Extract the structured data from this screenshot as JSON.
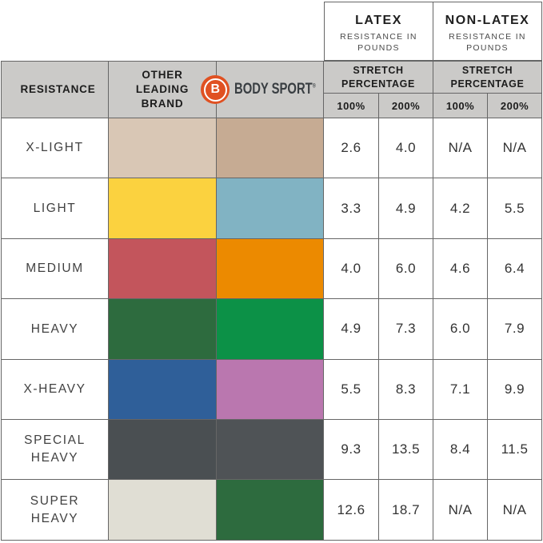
{
  "chart_data": {
    "type": "table",
    "header": {
      "resistance": "RESISTANCE",
      "other_brand": "OTHER LEADING BRAND",
      "brand": {
        "b": "B",
        "name": "BODY SPORT",
        "registered": "®"
      },
      "latex": {
        "title": "LATEX",
        "subtitle": "RESISTANCE IN POUNDS"
      },
      "non_latex": {
        "title": "NON-LATEX",
        "subtitle": "RESISTANCE IN POUNDS"
      },
      "stretch": "STRETCH PERCENTAGE",
      "pct100": "100%",
      "pct200": "200%"
    },
    "rows": [
      {
        "label": "X-LIGHT",
        "other_color": "#d9c7b5",
        "body_color": "#c6ab93",
        "values": [
          "2.6",
          "4.0",
          "N/A",
          "N/A"
        ]
      },
      {
        "label": "LIGHT",
        "other_color": "#fbd23f",
        "body_color": "#81b3c3",
        "values": [
          "3.3",
          "4.9",
          "4.2",
          "5.5"
        ]
      },
      {
        "label": "MEDIUM",
        "other_color": "#c3555c",
        "body_color": "#ec8a00",
        "values": [
          "4.0",
          "6.0",
          "4.6",
          "6.4"
        ]
      },
      {
        "label": "HEAVY",
        "other_color": "#2d6b3e",
        "body_color": "#0c9147",
        "values": [
          "4.9",
          "7.3",
          "6.0",
          "7.9"
        ]
      },
      {
        "label": "X-HEAVY",
        "other_color": "#2f5f99",
        "body_color": "#ba77af",
        "values": [
          "5.5",
          "8.3",
          "7.1",
          "9.9"
        ]
      },
      {
        "label": "SPECIAL HEAVY",
        "other_color": "#4a4f52",
        "body_color": "#4f5356",
        "values": [
          "9.3",
          "13.5",
          "8.4",
          "11.5"
        ]
      },
      {
        "label": "SUPER HEAVY",
        "other_color": "#e0ded4",
        "body_color": "#2d6b3e",
        "values": [
          "12.6",
          "18.7",
          "N/A",
          "N/A"
        ]
      }
    ],
    "colors": {
      "header_bg": "#cbcac8",
      "grid_line": "#666666",
      "logo_orange": "#e05122"
    }
  }
}
